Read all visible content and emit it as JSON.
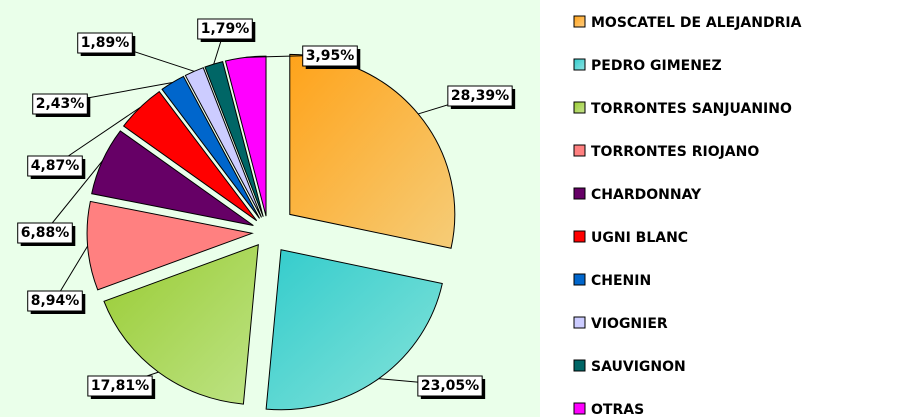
{
  "chart_data": {
    "type": "pie",
    "categories": [
      "MOSCATEL DE ALEJANDRIA",
      "PEDRO GIMENEZ",
      "TORRONTES SANJUANINO",
      "TORRONTES RIOJANO",
      "CHARDONNAY",
      "UGNI BLANC",
      "CHENIN",
      "VIOGNIER",
      "SAUVIGNON",
      "OTRAS"
    ],
    "values": [
      28.39,
      23.05,
      17.81,
      8.94,
      6.88,
      4.87,
      2.43,
      1.89,
      1.79,
      3.95
    ],
    "value_labels": [
      "28,39%",
      "23,05%",
      "17,81%",
      "8,94%",
      "6,88%",
      "4,87%",
      "2,43%",
      "1,89%",
      "1,79%",
      "3,95%"
    ],
    "colors": [
      "#ffa31a",
      "#33cccc",
      "#99cc33",
      "#ff8080",
      "#660066",
      "#ff0000",
      "#0066cc",
      "#ccccff",
      "#006666",
      "#ff00ff"
    ],
    "legend": "right"
  }
}
